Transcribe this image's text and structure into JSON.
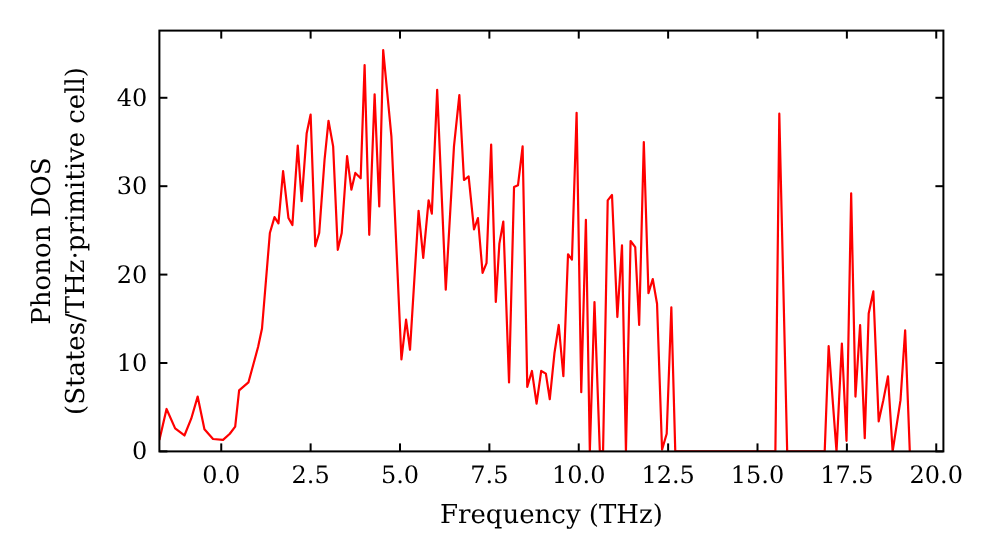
{
  "chart_data": {
    "type": "line",
    "xlabel": "Frequency (THz)",
    "ylabel": "Phonon DOS\n(States/THz·primitive cell)",
    "xlim": [
      -1.73,
      20.2
    ],
    "ylim": [
      0,
      47.6
    ],
    "xticks": [
      {
        "value": 0,
        "label": "0.0"
      },
      {
        "value": 2.5,
        "label": "2.5"
      },
      {
        "value": 5,
        "label": "5.0"
      },
      {
        "value": 7.5,
        "label": "7.5"
      },
      {
        "value": 10,
        "label": "10.0"
      },
      {
        "value": 12.5,
        "label": "12.5"
      },
      {
        "value": 15,
        "label": "15.0"
      },
      {
        "value": 17.5,
        "label": "17.5"
      },
      {
        "value": 20,
        "label": "20.0"
      }
    ],
    "yticks": [
      0,
      10,
      20,
      30,
      40
    ],
    "grid": false,
    "marker": "none",
    "line_style": "solid",
    "series": [
      {
        "color": "#ff0000",
        "x": [
          -1.73,
          -1.53,
          -1.29,
          -1.03,
          -0.84,
          -0.66,
          -0.47,
          -0.23,
          0.05,
          0.24,
          0.39,
          0.5,
          0.76,
          1.03,
          1.14,
          1.36,
          1.49,
          1.6,
          1.73,
          1.88,
          1.99,
          2.14,
          2.25,
          2.39,
          2.5,
          2.63,
          2.74,
          2.89,
          3.0,
          3.13,
          3.26,
          3.37,
          3.52,
          3.64,
          3.75,
          3.9,
          4.01,
          4.14,
          4.29,
          4.42,
          4.53,
          4.76,
          5.04,
          5.17,
          5.28,
          5.52,
          5.65,
          5.8,
          5.89,
          6.04,
          6.28,
          6.51,
          6.66,
          6.79,
          6.92,
          7.07,
          7.18,
          7.31,
          7.42,
          7.55,
          7.68,
          7.78,
          7.89,
          8.05,
          8.19,
          8.3,
          8.43,
          8.56,
          8.69,
          8.82,
          8.95,
          9.08,
          9.19,
          9.32,
          9.44,
          9.57,
          9.7,
          9.81,
          9.94,
          10.07,
          10.2,
          10.31,
          10.44,
          10.59,
          10.68,
          10.81,
          10.93,
          11.08,
          11.21,
          11.32,
          11.45,
          11.58,
          11.69,
          11.82,
          11.95,
          12.07,
          12.19,
          12.33,
          12.46,
          12.59,
          12.7,
          15.5,
          15.61,
          15.83,
          16.88,
          16.99,
          17.21,
          17.36,
          17.49,
          17.62,
          17.74,
          17.87,
          18.0,
          18.11,
          18.24,
          18.39,
          18.52,
          18.65,
          18.78,
          19.0,
          19.13,
          19.26
        ],
        "values": [
          1.3,
          4.8,
          2.6,
          1.8,
          3.7,
          6.2,
          2.5,
          1.4,
          1.3,
          2.0,
          2.8,
          6.9,
          7.8,
          11.8,
          13.9,
          24.7,
          26.5,
          25.8,
          31.7,
          26.4,
          25.6,
          34.6,
          28.3,
          36.0,
          38.1,
          23.2,
          24.7,
          33.0,
          37.4,
          34.5,
          22.8,
          24.7,
          33.4,
          29.6,
          31.5,
          30.9,
          43.7,
          24.5,
          40.4,
          27.7,
          45.4,
          35.6,
          10.4,
          14.9,
          11.5,
          27.2,
          21.9,
          28.4,
          26.9,
          40.9,
          18.3,
          34.5,
          40.3,
          30.7,
          31.1,
          25.1,
          26.4,
          20.2,
          21.3,
          34.7,
          16.9,
          23.5,
          26.0,
          7.8,
          29.9,
          30.1,
          34.5,
          7.3,
          9.1,
          5.4,
          9.1,
          8.8,
          5.9,
          11.1,
          14.3,
          8.5,
          22.3,
          21.7,
          38.3,
          6.7,
          26.2,
          0,
          16.9,
          0,
          0,
          28.4,
          29.0,
          15.2,
          23.3,
          0,
          23.8,
          23.1,
          14.3,
          35.0,
          17.9,
          19.5,
          16.7,
          0.2,
          2.0,
          16.3,
          0,
          0,
          38.2,
          0,
          0,
          11.9,
          0,
          12.2,
          1.2,
          29.2,
          6.2,
          14.3,
          1.5,
          15.6,
          18.1,
          3.4,
          5.8,
          8.5,
          0,
          5.8,
          13.7,
          0
        ]
      }
    ]
  }
}
